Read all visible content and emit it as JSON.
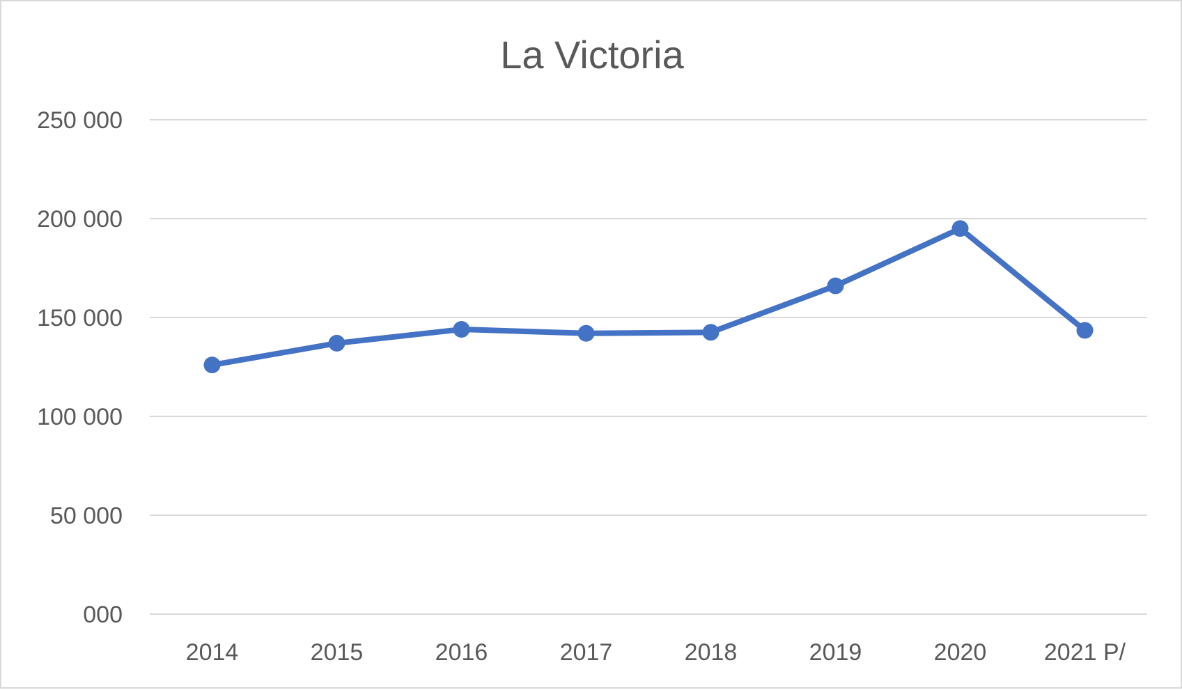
{
  "chart_data": {
    "type": "line",
    "title": "La Victoria",
    "xlabel": "",
    "ylabel": "",
    "categories": [
      "2014",
      "2015",
      "2016",
      "2017",
      "2018",
      "2019",
      "2020",
      "2021 P/"
    ],
    "series": [
      {
        "values": [
          126000,
          137000,
          144000,
          142000,
          142500,
          166000,
          195000,
          143500
        ]
      }
    ],
    "y_tick_values": [
      0,
      50000,
      100000,
      150000,
      200000,
      250000
    ],
    "y_tick_labels": [
      "000",
      "50 000",
      "100 000",
      "150 000",
      "200 000",
      "250 000"
    ],
    "ylim": [
      0,
      250000
    ],
    "grid": true,
    "legend": "none",
    "colors": {
      "series": "#4472c4",
      "grid": "#d9d9d9",
      "text": "#595959",
      "border": "#d9d9d9"
    }
  }
}
